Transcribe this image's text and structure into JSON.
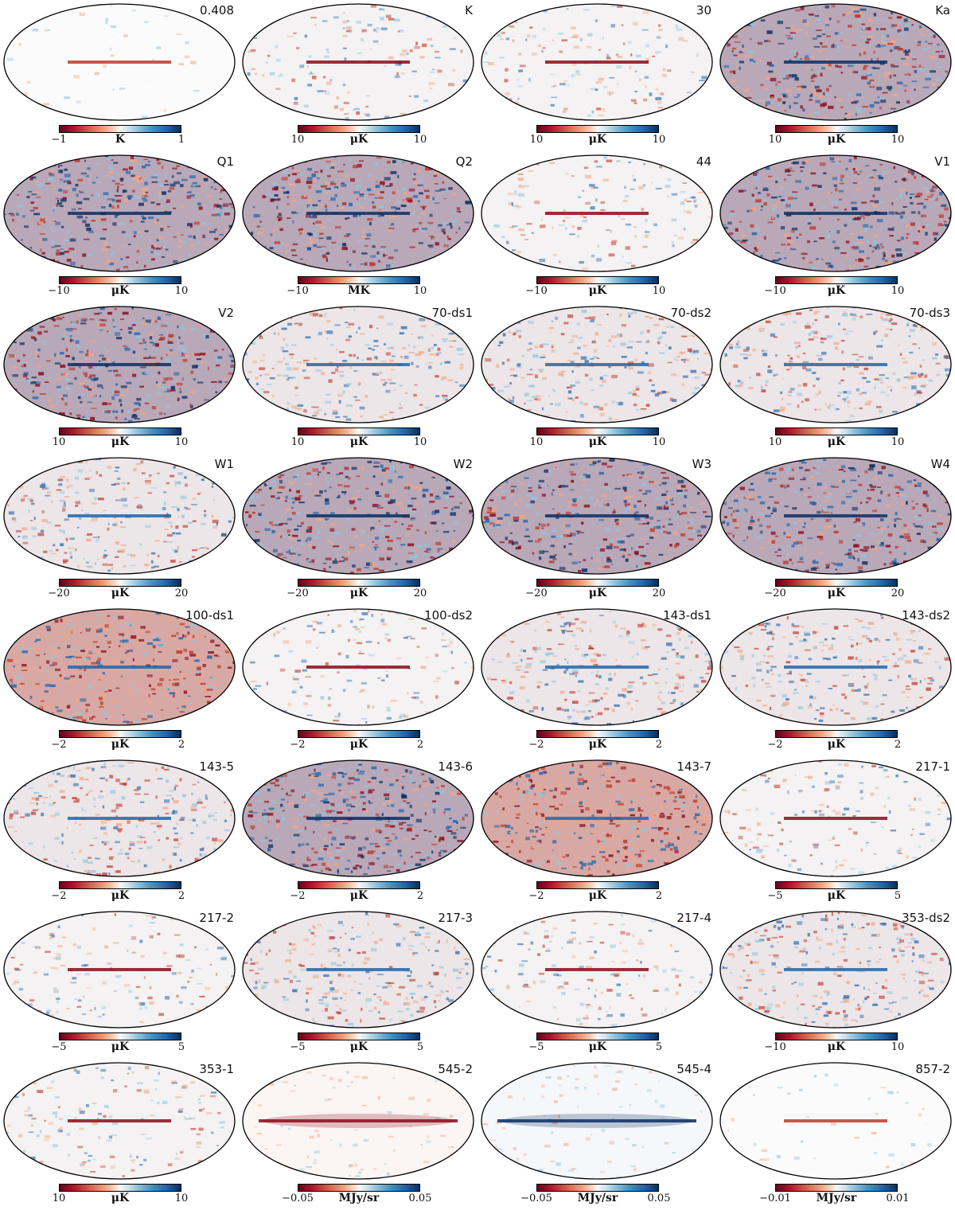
{
  "panels": [
    {
      "label": "0.408",
      "min": "−1",
      "max": "1",
      "unit": "K",
      "style": "faint"
    },
    {
      "label": "K",
      "min": "10",
      "max": "10",
      "unit": "μK",
      "style": "light"
    },
    {
      "label": "30",
      "min": "10",
      "max": "10",
      "unit": "μK",
      "style": "light"
    },
    {
      "label": "Ka",
      "min": "10",
      "max": "10",
      "unit": "μK",
      "style": "noisy"
    },
    {
      "label": "Q1",
      "min": "−10",
      "max": "10",
      "unit": "μK",
      "style": "noisy"
    },
    {
      "label": "Q2",
      "min": "−10",
      "max": "10",
      "unit": "MK",
      "style": "noisy"
    },
    {
      "label": "44",
      "min": "−10",
      "max": "10",
      "unit": "μK",
      "style": "light"
    },
    {
      "label": "V1",
      "min": "−10",
      "max": "10",
      "unit": "μK",
      "style": "noisy"
    },
    {
      "label": "V2",
      "min": "10",
      "max": "10",
      "unit": "μK",
      "style": "noisy"
    },
    {
      "label": "70-ds1",
      "min": "10",
      "max": "10",
      "unit": "μK",
      "style": "medium"
    },
    {
      "label": "70-ds2",
      "min": "10",
      "max": "10",
      "unit": "μK",
      "style": "medium"
    },
    {
      "label": "70-ds3",
      "min": "10",
      "max": "10",
      "unit": "μK",
      "style": "medium"
    },
    {
      "label": "W1",
      "min": "−20",
      "max": "20",
      "unit": "μK",
      "style": "medium"
    },
    {
      "label": "W2",
      "min": "−20",
      "max": "20",
      "unit": "μK",
      "style": "noisy"
    },
    {
      "label": "W3",
      "min": "−20",
      "max": "20",
      "unit": "μK",
      "style": "noisy"
    },
    {
      "label": "W4",
      "min": "−20",
      "max": "20",
      "unit": "μK",
      "style": "noisy"
    },
    {
      "label": "100-ds1",
      "min": "−2",
      "max": "2",
      "unit": "μK",
      "style": "redheavy"
    },
    {
      "label": "100-ds2",
      "min": "−2",
      "max": "2",
      "unit": "μK",
      "style": "light"
    },
    {
      "label": "143-ds1",
      "min": "−2",
      "max": "2",
      "unit": "μK",
      "style": "medium"
    },
    {
      "label": "143-ds2",
      "min": "−2",
      "max": "2",
      "unit": "μK",
      "style": "medium"
    },
    {
      "label": "143-5",
      "min": "−2",
      "max": "2",
      "unit": "μK",
      "style": "medium"
    },
    {
      "label": "143-6",
      "min": "−2",
      "max": "2",
      "unit": "μK",
      "style": "noisy"
    },
    {
      "label": "143-7",
      "min": "−2",
      "max": "2",
      "unit": "μK",
      "style": "redheavy"
    },
    {
      "label": "217-1",
      "min": "−5",
      "max": "5",
      "unit": "μK",
      "style": "light"
    },
    {
      "label": "217-2",
      "min": "−5",
      "max": "5",
      "unit": "μK",
      "style": "light"
    },
    {
      "label": "217-3",
      "min": "−5",
      "max": "5",
      "unit": "μK",
      "style": "medium"
    },
    {
      "label": "217-4",
      "min": "−5",
      "max": "5",
      "unit": "μK",
      "style": "light"
    },
    {
      "label": "353-ds2",
      "min": "−10",
      "max": "10",
      "unit": "μK",
      "style": "medium"
    },
    {
      "label": "353-1",
      "min": "10",
      "max": "10",
      "unit": "μK",
      "style": "light"
    },
    {
      "label": "545-2",
      "min": "−0.05",
      "max": "0.05",
      "unit": "MJy/sr",
      "style": "redband"
    },
    {
      "label": "545-4",
      "min": "−0.05",
      "max": "0.05",
      "unit": "MJy/sr",
      "style": "blueband"
    },
    {
      "label": "857-2",
      "min": "−0.01",
      "max": "0.01",
      "unit": "MJy/sr",
      "style": "faint"
    }
  ],
  "colors": {
    "red_dark": "#8b0a1a",
    "red": "#c0392b",
    "red_light": "#f4a582",
    "white": "#f7f7f7",
    "blue_light": "#92c5de",
    "blue": "#2166ac",
    "blue_dark": "#0b2f63"
  }
}
